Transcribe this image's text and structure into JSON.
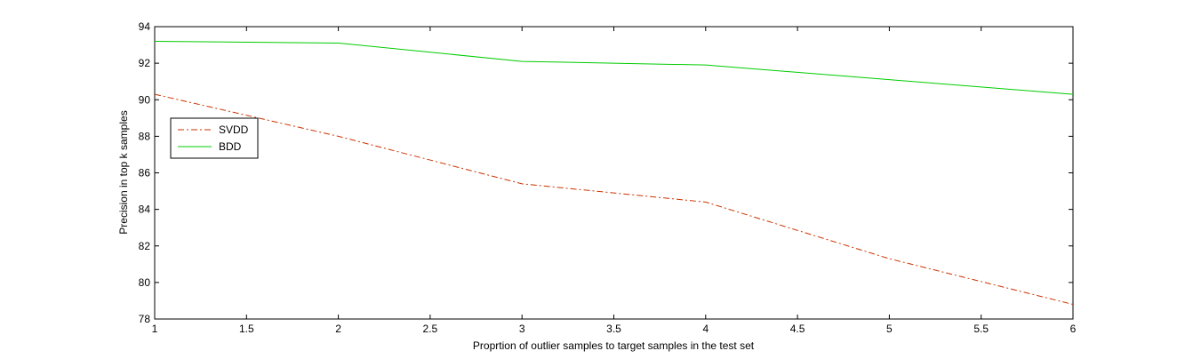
{
  "chart_data": {
    "type": "line",
    "xlabel": "Proprtion of outlier samples to target samples in the test set",
    "ylabel": "Precision in top k samples",
    "xlim": [
      1,
      6
    ],
    "ylim": [
      78,
      94
    ],
    "xticks": [
      1,
      1.5,
      2,
      2.5,
      3,
      3.5,
      4,
      4.5,
      5,
      5.5,
      6
    ],
    "xtick_labels": [
      "1",
      "1.5",
      "2",
      "2.5",
      "3",
      "3.5",
      "4",
      "4.5",
      "5",
      "5.5",
      "6"
    ],
    "yticks": [
      78,
      80,
      82,
      84,
      86,
      88,
      90,
      92,
      94
    ],
    "ytick_labels": [
      "78",
      "80",
      "82",
      "84",
      "86",
      "88",
      "90",
      "92",
      "94"
    ],
    "grid": false,
    "legend_position": "upper-left",
    "x": [
      1,
      2,
      3,
      4,
      5,
      6
    ],
    "series": [
      {
        "name": "SVDD",
        "values": [
          90.3,
          88.0,
          85.4,
          84.4,
          81.3,
          78.8
        ],
        "color": "#cc3300",
        "style": "dash-dot"
      },
      {
        "name": "BDD",
        "values": [
          93.2,
          93.1,
          92.1,
          91.9,
          91.1,
          90.3
        ],
        "color": "#00cc00",
        "style": "solid"
      }
    ]
  }
}
